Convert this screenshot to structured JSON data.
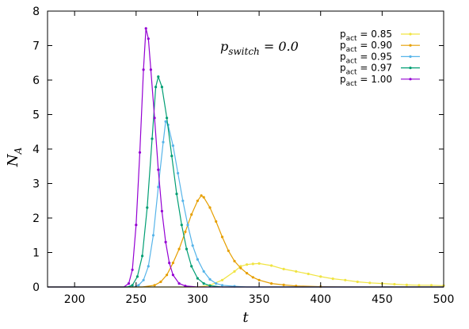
{
  "chart_data": {
    "type": "line",
    "xlabel": "t",
    "ylabel": "N",
    "ylabel_sub": "A",
    "xlim": [
      178,
      500
    ],
    "ylim": [
      0,
      8
    ],
    "xticks": [
      200,
      250,
      300,
      350,
      400,
      450,
      500
    ],
    "yticks": [
      0,
      1,
      2,
      3,
      4,
      5,
      6,
      7,
      8
    ],
    "grid": false,
    "legend_position": "top-right",
    "annotation": {
      "main": "p",
      "sub": "switch",
      "rest": " = 0.0"
    },
    "series": [
      {
        "name": "p_act = 0.85",
        "label_main": "p",
        "label_sub": "act",
        "label_rest": " = 0.85",
        "color": "#f0e442",
        "x": [
          178,
          300,
          310,
          320,
          330,
          335,
          340,
          345,
          350,
          360,
          370,
          380,
          390,
          400,
          410,
          420,
          430,
          440,
          450,
          460,
          470,
          480,
          490,
          500
        ],
        "y": [
          0,
          0,
          0.05,
          0.2,
          0.45,
          0.6,
          0.65,
          0.67,
          0.68,
          0.62,
          0.52,
          0.45,
          0.38,
          0.3,
          0.24,
          0.2,
          0.15,
          0.12,
          0.1,
          0.08,
          0.06,
          0.05,
          0.05,
          0.04
        ]
      },
      {
        "name": "p_act = 0.90",
        "label_main": "p",
        "label_sub": "act",
        "label_rest": " = 0.90",
        "color": "#e69f00",
        "x": [
          178,
          255,
          265,
          270,
          275,
          280,
          285,
          290,
          295,
          300,
          303,
          305,
          310,
          315,
          320,
          325,
          330,
          335,
          340,
          345,
          350,
          360,
          370,
          380,
          400,
          420,
          500
        ],
        "y": [
          0,
          0,
          0.05,
          0.15,
          0.35,
          0.7,
          1.1,
          1.6,
          2.1,
          2.5,
          2.65,
          2.6,
          2.3,
          1.9,
          1.45,
          1.05,
          0.75,
          0.55,
          0.4,
          0.28,
          0.2,
          0.1,
          0.06,
          0.03,
          0.01,
          0,
          0
        ]
      },
      {
        "name": "p_act = 0.95",
        "label_main": "p",
        "label_sub": "act",
        "label_rest": " = 0.95",
        "color": "#56b4e9",
        "x": [
          178,
          248,
          252,
          256,
          260,
          264,
          268,
          272,
          274,
          276,
          280,
          284,
          288,
          292,
          296,
          300,
          305,
          310,
          315,
          320,
          330,
          340,
          500
        ],
        "y": [
          0,
          0,
          0.05,
          0.2,
          0.6,
          1.5,
          2.9,
          4.2,
          4.8,
          4.7,
          4.1,
          3.3,
          2.5,
          1.8,
          1.2,
          0.8,
          0.45,
          0.22,
          0.1,
          0.05,
          0.02,
          0,
          0
        ]
      },
      {
        "name": "p_act = 0.97",
        "label_main": "p",
        "label_sub": "act",
        "label_rest": " = 0.97",
        "color": "#009e73",
        "x": [
          178,
          243,
          247,
          251,
          255,
          259,
          263,
          266,
          268,
          271,
          275,
          279,
          283,
          287,
          291,
          295,
          300,
          305,
          310,
          320,
          500
        ],
        "y": [
          0,
          0,
          0.05,
          0.3,
          0.9,
          2.3,
          4.3,
          5.8,
          6.1,
          5.8,
          4.9,
          3.8,
          2.7,
          1.8,
          1.1,
          0.6,
          0.25,
          0.1,
          0.04,
          0,
          0
        ]
      },
      {
        "name": "p_act = 1.00",
        "label_main": "p",
        "label_sub": "act",
        "label_rest": " = 1.00",
        "color": "#9400d3",
        "x": [
          178,
          240,
          244,
          247,
          250,
          253,
          256,
          258,
          260,
          262,
          265,
          268,
          271,
          274,
          277,
          280,
          285,
          290,
          300,
          500
        ],
        "y": [
          0,
          0,
          0.1,
          0.5,
          1.8,
          3.9,
          6.3,
          7.5,
          7.2,
          6.3,
          4.9,
          3.4,
          2.2,
          1.3,
          0.7,
          0.35,
          0.1,
          0.03,
          0,
          0
        ]
      }
    ]
  }
}
